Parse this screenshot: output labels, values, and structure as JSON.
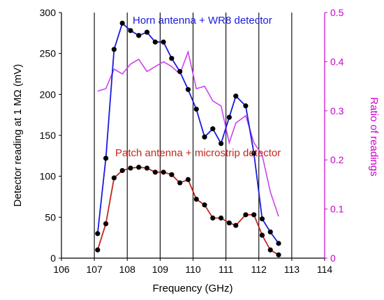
{
  "chart_data": {
    "type": "line",
    "title": "",
    "xlabel": "Frequency (GHz)",
    "ylabel": "Detector reading at 1 MΩ (mV)",
    "y2label": "Ratio of readings",
    "xlim": [
      106,
      114
    ],
    "ylim": [
      0,
      300
    ],
    "y2lim": [
      0,
      0.5
    ],
    "x_ticks": [
      "106",
      "107",
      "108",
      "109",
      "110",
      "111",
      "112",
      "113",
      "114"
    ],
    "y_ticks": [
      "0",
      "50",
      "100",
      "150",
      "200",
      "250",
      "300"
    ],
    "y2_ticks": [
      "0",
      "0.1",
      "0.2",
      "0.3",
      "0.4",
      "0.5"
    ],
    "vertical_gridlines_at": [
      107,
      108,
      109,
      110,
      111,
      112,
      113
    ],
    "colors": {
      "horn": "#1a1adc",
      "patch": "#c0281e",
      "ratio": "#cc44ee",
      "markers": "#000000",
      "right_axis": "#cc00cc"
    },
    "series": [
      {
        "axis": "left",
        "annotation_key": "horn",
        "x": [
          107.1,
          107.35,
          107.6,
          107.85,
          108.1,
          108.35,
          108.6,
          108.85,
          109.1,
          109.35,
          109.6,
          109.85,
          110.1,
          110.35,
          110.6,
          110.85,
          111.1,
          111.3,
          111.6,
          111.85,
          112.1,
          112.35,
          112.6
        ],
        "y": [
          30,
          122,
          255,
          287,
          278,
          272,
          276,
          264,
          264,
          244,
          228,
          206,
          182,
          148,
          158,
          140,
          172,
          198,
          186,
          128,
          48,
          32,
          18
        ]
      },
      {
        "axis": "left",
        "annotation_key": "patch",
        "x": [
          107.1,
          107.35,
          107.6,
          107.85,
          108.1,
          108.35,
          108.6,
          108.85,
          109.1,
          109.35,
          109.6,
          109.85,
          110.1,
          110.35,
          110.6,
          110.85,
          111.1,
          111.3,
          111.6,
          111.85,
          112.1,
          112.35,
          112.6
        ],
        "y": [
          10,
          42,
          98,
          107,
          110,
          111,
          110,
          105,
          105,
          102,
          92,
          96,
          72,
          65,
          49,
          49,
          43,
          40,
          53,
          53,
          28,
          10,
          4
        ]
      },
      {
        "axis": "right",
        "x": [
          107.1,
          107.35,
          107.6,
          107.85,
          108.1,
          108.35,
          108.6,
          108.85,
          109.1,
          109.35,
          109.6,
          109.85,
          110.1,
          110.35,
          110.6,
          110.85,
          111.1,
          111.3,
          111.6,
          111.85,
          112.1,
          112.35,
          112.6
        ],
        "y": [
          0.34,
          0.345,
          0.385,
          0.375,
          0.395,
          0.405,
          0.38,
          0.39,
          0.4,
          0.39,
          0.375,
          0.42,
          0.345,
          0.35,
          0.32,
          0.31,
          0.235,
          0.275,
          0.29,
          0.235,
          0.21,
          0.135,
          0.085
        ]
      }
    ],
    "annotations": {
      "horn": "Horn antenna + WR8 detector",
      "patch": "Patch antenna + microstrip detector"
    }
  }
}
